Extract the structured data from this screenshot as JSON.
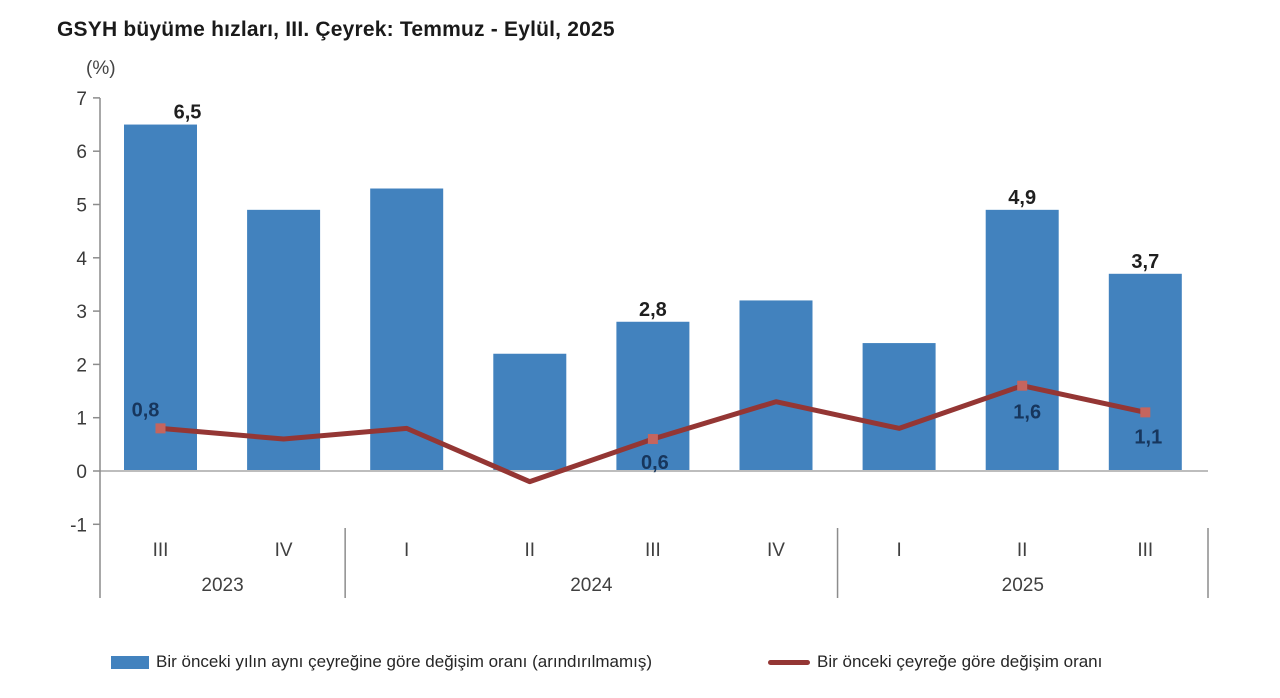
{
  "title": "GSYH büyüme hızları, III. Çeyrek: Temmuz - Eylül, 2025",
  "axis_unit_label": "(%)",
  "chart_data": {
    "type": "combo-bar-line",
    "title": "GSYH büyüme hızları, III. Çeyrek: Temmuz - Eylül, 2025",
    "ylabel": "(%)",
    "ylim": [
      -1,
      7
    ],
    "yticks": [
      7,
      6,
      5,
      4,
      3,
      2,
      1,
      0,
      -1
    ],
    "grid": false,
    "legend_position": "bottom",
    "categories": [
      "III",
      "IV",
      "I",
      "II",
      "III",
      "IV",
      "I",
      "II",
      "III"
    ],
    "year_groups": [
      {
        "label": "2023",
        "start": 0,
        "end": 1
      },
      {
        "label": "2024",
        "start": 2,
        "end": 5
      },
      {
        "label": "2025",
        "start": 6,
        "end": 8
      }
    ],
    "series": [
      {
        "name": "Bir önceki yılın aynı çeyreğine göre değişim oranı (arındırılmamış)",
        "type": "bar",
        "color": "#4282BE",
        "values": [
          6.5,
          4.9,
          5.3,
          2.2,
          2.8,
          3.2,
          2.4,
          4.9,
          3.7
        ],
        "point_labels": {
          "0": "6,5",
          "4": "2,8",
          "7": "4,9",
          "8": "3,7"
        },
        "label_color": "#1F1F1F"
      },
      {
        "name": "Bir önceki çeyreğe göre değişim oranı",
        "type": "line",
        "color": "#943634",
        "marker_color": "#C5655E",
        "values": [
          0.8,
          0.6,
          0.8,
          -0.2,
          0.6,
          1.3,
          0.8,
          1.6,
          1.1
        ],
        "point_labels": {
          "0": "0,8",
          "4": "0,6",
          "7": "1,6",
          "8": "1,1"
        },
        "label_color": "#17365D"
      }
    ],
    "axis_color": "#8C8C8C",
    "zero_line_color": "#BDBDBD",
    "axis_text_color": "#3A3A3A"
  },
  "legend": {
    "items": [
      {
        "label": "Bir önceki yılın aynı çeyreğine göre değişim oranı (arındırılmamış)",
        "swatch": "bar",
        "color": "#4282BE"
      },
      {
        "label": "Bir önceki çeyreğe göre değişim oranı",
        "swatch": "line",
        "color": "#943634"
      }
    ]
  }
}
